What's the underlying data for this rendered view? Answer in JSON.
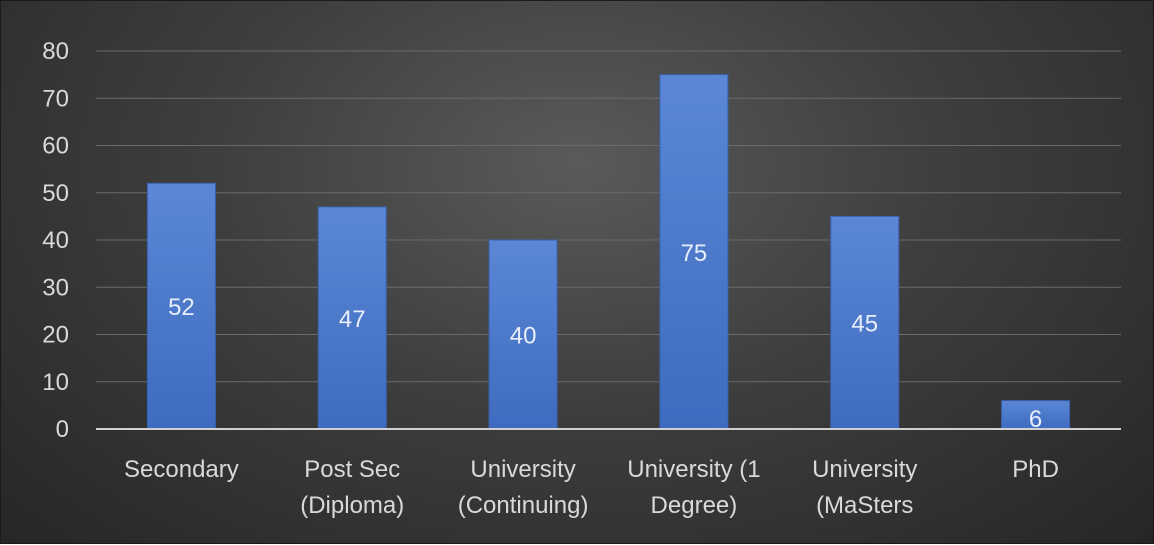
{
  "chart_data": {
    "type": "bar",
    "categories": [
      [
        "Secondary"
      ],
      [
        "Post Sec",
        "(Diploma)"
      ],
      [
        "University",
        "(Continuing)"
      ],
      [
        "University (1",
        "Degree)"
      ],
      [
        "University",
        "(MaSters"
      ],
      [
        "PhD"
      ]
    ],
    "values": [
      52,
      47,
      40,
      75,
      45,
      6
    ],
    "ylim": [
      0,
      80
    ],
    "yticks": [
      0,
      10,
      20,
      30,
      40,
      50,
      60,
      70,
      80
    ],
    "grid": true,
    "legend": "none",
    "bar_color": "#4472c4",
    "bar_color_light": "#5b87d6",
    "title": "",
    "xlabel": "",
    "ylabel": ""
  }
}
